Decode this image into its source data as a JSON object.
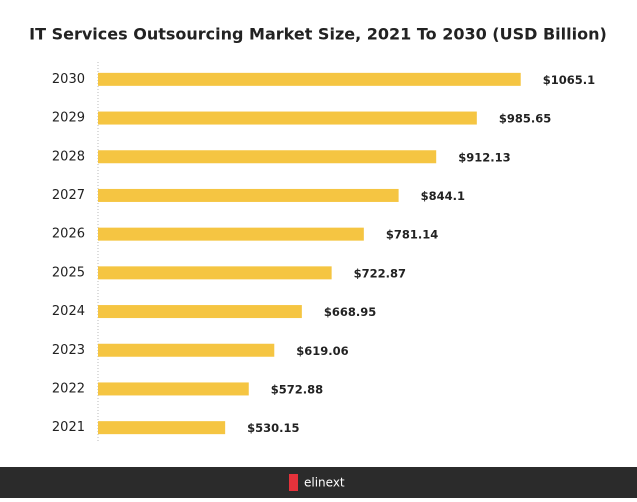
{
  "chart_data": {
    "type": "bar",
    "orientation": "horizontal",
    "title": "IT Services Outsourcing Market Size, 2021 To 2030 (USD Billion)",
    "categories": [
      "2030",
      "2029",
      "2028",
      "2027",
      "2026",
      "2025",
      "2024",
      "2023",
      "2022",
      "2021"
    ],
    "values": [
      1065.1,
      985.65,
      912.13,
      844.1,
      781.14,
      722.87,
      668.95,
      619.06,
      572.88,
      530.15
    ],
    "value_labels": [
      "$1065.1",
      "$985.65",
      "$912.13",
      "$844.1",
      "$781.14",
      "$722.87",
      "$668.95",
      "$619.06",
      "$572.88",
      "$530.15"
    ],
    "color": "#f5c542",
    "xlim": [
      300,
      1100
    ]
  },
  "footer": {
    "brand": "elinext"
  }
}
